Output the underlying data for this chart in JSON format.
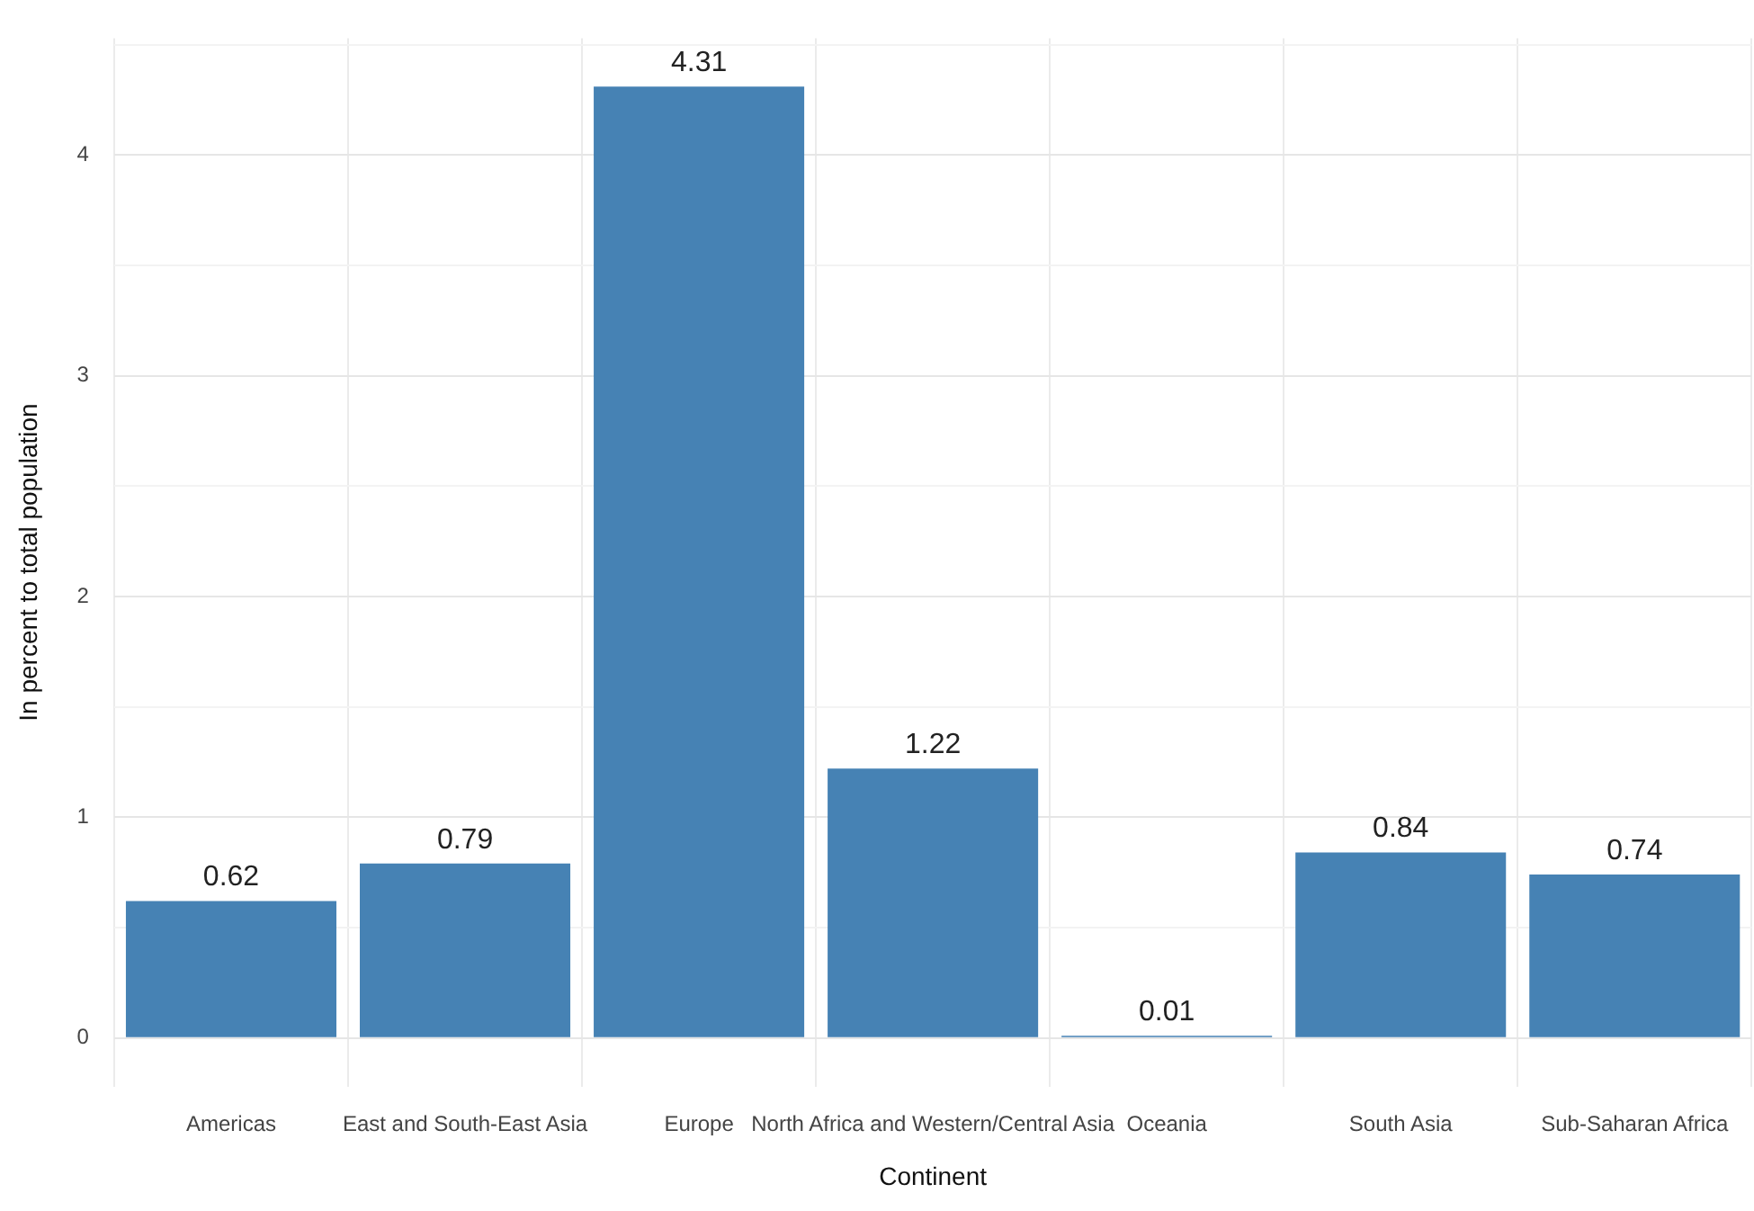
{
  "chart_data": {
    "type": "bar",
    "xlabel": "Continent",
    "ylabel": "In percent to total population",
    "categories": [
      "Americas",
      "East and South-East Asia",
      "Europe",
      "North Africa and Western/Central Asia",
      "Oceania",
      "South Asia",
      "Sub-Saharan Africa"
    ],
    "values": [
      0.62,
      0.79,
      4.31,
      1.22,
      0.01,
      0.84,
      0.74
    ],
    "color": "#4682b4",
    "ylim": [
      -0.22,
      4.53
    ],
    "yticks": [
      0,
      {
        "value": 0.5,
        "label": null
      },
      1,
      {
        "value": 1.5,
        "label": null
      },
      2,
      {
        "value": 2.5,
        "label": null
      },
      3,
      {
        "value": 3.5,
        "label": null
      },
      4,
      {
        "value": 4.5,
        "label": null
      }
    ],
    "grid": true,
    "data_labels": true,
    "legend": false
  }
}
